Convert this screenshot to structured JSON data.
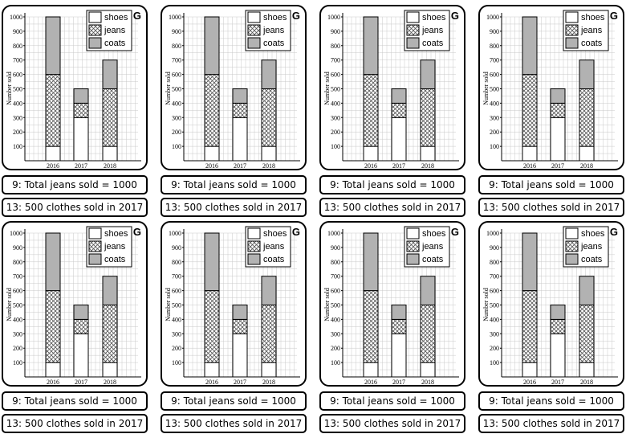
{
  "chart_data": {
    "type": "bar",
    "stacked": true,
    "categories": [
      "2016",
      "2017",
      "2018"
    ],
    "series": [
      {
        "name": "shoes",
        "values": [
          100,
          300,
          100
        ],
        "pattern": "white"
      },
      {
        "name": "jeans",
        "values": [
          500,
          100,
          400
        ],
        "pattern": "crosshatch"
      },
      {
        "name": "coats",
        "values": [
          400,
          100,
          200
        ],
        "pattern": "gray"
      }
    ],
    "ylabel": "Number sold",
    "xlabel": "",
    "ylim": [
      0,
      1000
    ],
    "yticks": [
      100,
      200,
      300,
      400,
      500,
      600,
      700,
      800,
      900,
      1000
    ],
    "legend_position": "top-right",
    "grid": true
  },
  "badge": "G",
  "answers": {
    "line1": "9: Total jeans sold = 1000",
    "line2": "13: 500 clothes sold in 2017"
  },
  "colors": {
    "coats_fill": "#b2b2b2",
    "shoes_fill": "#ffffff",
    "grid": "#c9c9c9",
    "border": "#000000"
  }
}
